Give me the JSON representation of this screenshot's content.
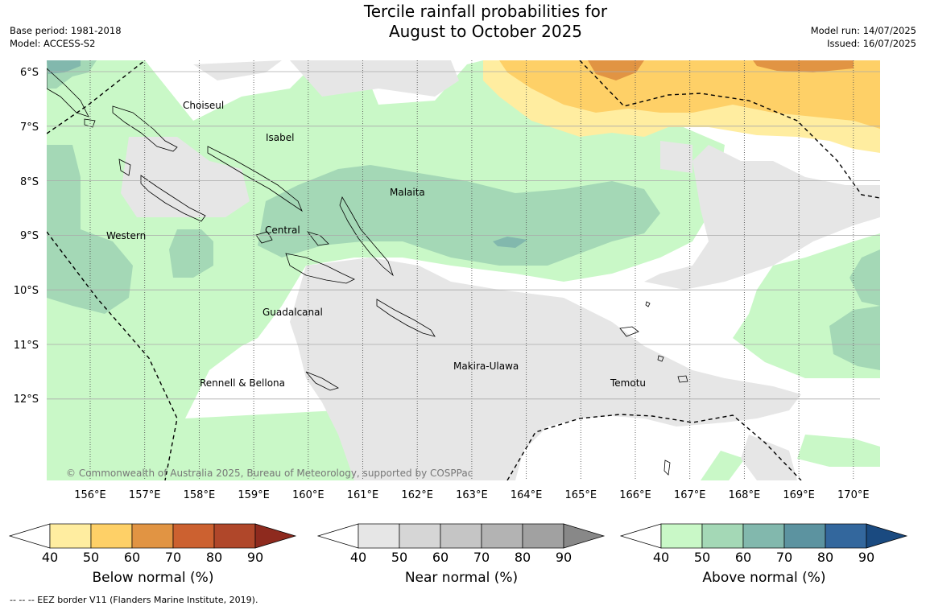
{
  "title": {
    "line1": "Tercile rainfall probabilities for",
    "line2": "August to October 2025"
  },
  "meta_left": {
    "base_period": "Base period: 1981-2018",
    "model": "Model: ACCESS-S2"
  },
  "meta_right": {
    "model_run": "Model run: 14/07/2025",
    "issued": "Issued: 16/07/2025"
  },
  "map": {
    "lat_labels": [
      "6°S",
      "7°S",
      "8°S",
      "9°S",
      "10°S",
      "11°S",
      "12°S"
    ],
    "lon_labels": [
      "156°E",
      "157°E",
      "158°E",
      "159°E",
      "160°E",
      "161°E",
      "162°E",
      "163°E",
      "164°E",
      "165°E",
      "166°E",
      "167°E",
      "168°E",
      "169°E",
      "170°E"
    ],
    "regions": [
      "Choiseul",
      "Isabel",
      "Malaita",
      "Western",
      "Central",
      "Guadalcanal",
      "Makira-Ulawa",
      "Rennell & Bellona",
      "Temotu"
    ],
    "copyright": "© Commonwealth of Australia 2025, Bureau of Meteorology, supported by COSPPac"
  },
  "colorbars": [
    {
      "title": "Below normal (%)",
      "ticks": [
        "40",
        "50",
        "60",
        "70",
        "80",
        "90"
      ],
      "colors": [
        "#ffffff",
        "#ffeda0",
        "#fed067",
        "#e19443",
        "#cc6130",
        "#b0472a",
        "#8e2a1e"
      ]
    },
    {
      "title": "Near normal (%)",
      "ticks": [
        "40",
        "50",
        "60",
        "70",
        "80",
        "90"
      ],
      "colors": [
        "#ffffff",
        "#e6e6e6",
        "#d6d6d6",
        "#c5c5c5",
        "#b3b3b3",
        "#a1a1a1",
        "#888888"
      ]
    },
    {
      "title": "Above normal (%)",
      "ticks": [
        "40",
        "50",
        "60",
        "70",
        "80",
        "90"
      ],
      "colors": [
        "#ffffff",
        "#c9f8c7",
        "#a4d8b6",
        "#82b8ad",
        "#5c93a0",
        "#33679d",
        "#1a4a80"
      ]
    }
  ],
  "footnote": "--  --  -- EEZ border V11 (Flanders Marine Institute, 2019)."
}
